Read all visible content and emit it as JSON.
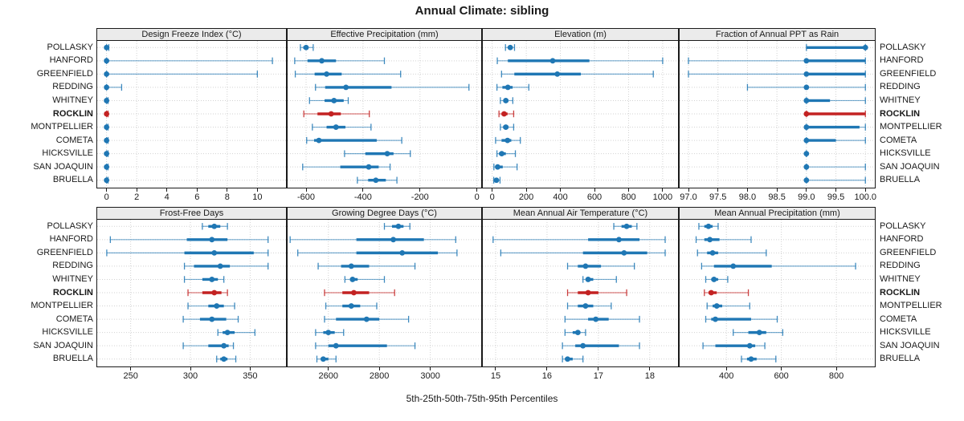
{
  "title": "Annual Climate: sibling",
  "footer": "5th-25th-50th-75th-95th Percentiles",
  "sites": [
    "POLLASKY",
    "HANFORD",
    "GREENFIELD",
    "REDDING",
    "WHITNEY",
    "ROCKLIN",
    "MONTPELLIER",
    "COMETA",
    "HICKSVILLE",
    "SAN JOAQUIN",
    "BRUELLA"
  ],
  "highlight_site": "ROCKLIN",
  "percentiles": [
    "5th",
    "25th",
    "50th",
    "75th",
    "95th"
  ],
  "colors": {
    "series": "#1f77b4",
    "highlight": "#c32222",
    "header_bg": "#ebebeb",
    "panel_border": "#1a1a1a",
    "grid": "#d2d2d2",
    "text": "#1a1a1a"
  },
  "chart_data": [
    {
      "type": "dotplot",
      "title": "Design Freeze Index (°C)",
      "xlim": [
        -0.62,
        11.9
      ],
      "ticks": [
        0,
        2,
        4,
        6,
        8,
        10
      ],
      "tick_labels": [
        "0",
        "2",
        "4",
        "6",
        "8",
        "10"
      ],
      "values": [
        [
          0,
          0,
          0,
          0,
          0.15
        ],
        [
          0,
          0,
          0,
          0,
          11
        ],
        [
          0,
          0,
          0,
          0,
          10
        ],
        [
          0,
          0,
          0,
          0,
          1
        ],
        [
          0,
          0,
          0,
          0,
          0.1
        ],
        [
          0,
          0,
          0,
          0,
          0.1
        ],
        [
          0,
          0,
          0,
          0,
          0.1
        ],
        [
          0,
          0,
          0,
          0,
          0.1
        ],
        [
          0,
          0,
          0,
          0,
          0.1
        ],
        [
          0,
          0,
          0,
          0,
          0.1
        ],
        [
          0,
          0,
          0,
          0,
          0.1
        ]
      ]
    },
    {
      "type": "dotplot",
      "title": "Effective Precipitation (mm)",
      "xlim": [
        -665,
        15
      ],
      "ticks": [
        -600,
        -400,
        -200,
        0
      ],
      "tick_labels": [
        "-600",
        "-400",
        "-200",
        "0"
      ],
      "values": [
        [
          -620,
          -610,
          -600,
          -592,
          -575
        ],
        [
          -640,
          -595,
          -545,
          -495,
          -325
        ],
        [
          -638,
          -570,
          -528,
          -475,
          -268
        ],
        [
          -567,
          -533,
          -460,
          -300,
          -28
        ],
        [
          -588,
          -535,
          -502,
          -468,
          -452
        ],
        [
          -608,
          -560,
          -512,
          -478,
          -378
        ],
        [
          -578,
          -528,
          -495,
          -462,
          -372
        ],
        [
          -598,
          -572,
          -555,
          -352,
          -264
        ],
        [
          -465,
          -392,
          -315,
          -293,
          -234
        ],
        [
          -612,
          -480,
          -380,
          -345,
          -305
        ],
        [
          -420,
          -382,
          -355,
          -320,
          -281
        ]
      ]
    },
    {
      "type": "dotplot",
      "title": "Elevation (m)",
      "xlim": [
        -55,
        1090
      ],
      "ticks": [
        0,
        200,
        400,
        600,
        800,
        1000
      ],
      "tick_labels": [
        "0",
        "200",
        "400",
        "600",
        "800",
        "1000"
      ],
      "values": [
        [
          78,
          95,
          106,
          116,
          131
        ],
        [
          30,
          92,
          355,
          570,
          1000
        ],
        [
          55,
          130,
          382,
          520,
          945
        ],
        [
          28,
          60,
          92,
          120,
          215
        ],
        [
          48,
          65,
          80,
          95,
          121
        ],
        [
          40,
          55,
          70,
          90,
          126
        ],
        [
          48,
          64,
          80,
          96,
          126
        ],
        [
          20,
          55,
          90,
          112,
          165
        ],
        [
          28,
          40,
          56,
          80,
          136
        ],
        [
          10,
          20,
          32,
          62,
          146
        ],
        [
          9,
          17,
          25,
          34,
          46
        ]
      ]
    },
    {
      "type": "dotplot",
      "title": "Fraction of Annual PPT as Rain",
      "xlim": [
        96.85,
        100.16
      ],
      "ticks": [
        97.0,
        97.5,
        98.0,
        98.5,
        99.0,
        99.5,
        100.0
      ],
      "tick_labels": [
        "97.0",
        "97.5",
        "98.0",
        "98.5",
        "99.0",
        "99.5",
        "100.0"
      ],
      "values": [
        [
          99,
          99,
          100,
          100,
          100
        ],
        [
          97,
          99,
          99,
          100,
          100
        ],
        [
          97,
          99,
          99,
          100,
          100
        ],
        [
          98,
          99,
          99,
          99,
          100
        ],
        [
          99,
          99,
          99,
          99.4,
          100
        ],
        [
          99,
          99,
          99,
          100,
          100
        ],
        [
          99,
          99,
          99,
          99.9,
          100
        ],
        [
          99,
          99,
          99,
          99.5,
          100
        ],
        [
          99,
          99,
          99,
          99,
          99
        ],
        [
          99,
          99,
          99,
          99,
          100
        ],
        [
          99,
          99,
          99,
          99,
          100
        ]
      ]
    },
    {
      "type": "dotplot",
      "title": "Frost-Free Days",
      "xlim": [
        222,
        380
      ],
      "ticks": [
        250,
        300,
        350
      ],
      "tick_labels": [
        "250",
        "300",
        "350"
      ],
      "values": [
        [
          310,
          315,
          320,
          325,
          331
        ],
        [
          233,
          297,
          318,
          331,
          365
        ],
        [
          230,
          295,
          320,
          353,
          365
        ],
        [
          295,
          303,
          325,
          333,
          365
        ],
        [
          295,
          310,
          318,
          323,
          328
        ],
        [
          298,
          310,
          320,
          326,
          331
        ],
        [
          298,
          315,
          322,
          328,
          337
        ],
        [
          294,
          308,
          318,
          330,
          340
        ],
        [
          323,
          327,
          331,
          337,
          354
        ],
        [
          294,
          315,
          328,
          332,
          336
        ],
        [
          322,
          325,
          328,
          331,
          338
        ]
      ]
    },
    {
      "type": "dotplot",
      "title": "Growing Degree Days (°C)",
      "xlim": [
        2440,
        3200
      ],
      "ticks": [
        2600,
        2800,
        3000
      ],
      "tick_labels": [
        "2600",
        "2800",
        "3000"
      ],
      "values": [
        [
          2820,
          2850,
          2875,
          2895,
          2920
        ],
        [
          2450,
          2710,
          2855,
          2975,
          3100
        ],
        [
          2480,
          2710,
          2890,
          3030,
          3105
        ],
        [
          2560,
          2650,
          2690,
          2760,
          2940
        ],
        [
          2665,
          2685,
          2695,
          2715,
          2820
        ],
        [
          2585,
          2655,
          2700,
          2760,
          2860
        ],
        [
          2590,
          2655,
          2690,
          2725,
          2790
        ],
        [
          2585,
          2630,
          2750,
          2800,
          2915
        ],
        [
          2550,
          2580,
          2600,
          2625,
          2660
        ],
        [
          2550,
          2600,
          2630,
          2830,
          2940
        ],
        [
          2555,
          2570,
          2580,
          2600,
          2630
        ]
      ]
    },
    {
      "type": "dotplot",
      "title": "Mean Annual Air Temperature (°C)",
      "xlim": [
        14.75,
        18.55
      ],
      "ticks": [
        15,
        16,
        17,
        18
      ],
      "tick_labels": [
        "15",
        "16",
        "17",
        "18"
      ],
      "values": [
        [
          17.3,
          17.45,
          17.55,
          17.65,
          17.75
        ],
        [
          14.95,
          16.8,
          17.4,
          17.8,
          18.3
        ],
        [
          15.1,
          16.7,
          17.5,
          17.95,
          18.3
        ],
        [
          16.4,
          16.6,
          16.75,
          17.05,
          17.7
        ],
        [
          16.7,
          16.75,
          16.8,
          16.9,
          17.35
        ],
        [
          16.4,
          16.6,
          16.8,
          17.0,
          17.55
        ],
        [
          16.4,
          16.6,
          16.75,
          16.9,
          17.25
        ],
        [
          16.35,
          16.8,
          16.95,
          17.2,
          17.8
        ],
        [
          16.35,
          16.5,
          16.6,
          16.65,
          16.75
        ],
        [
          16.3,
          16.55,
          16.7,
          17.4,
          17.8
        ],
        [
          16.3,
          16.35,
          16.4,
          16.5,
          16.7
        ]
      ]
    },
    {
      "type": "dotplot",
      "title": "Mean Annual Precipitation (mm)",
      "xlim": [
        230,
        940
      ],
      "ticks": [
        400,
        600,
        800
      ],
      "tick_labels": [
        "400",
        "600",
        "800"
      ],
      "values": [
        [
          300,
          320,
          335,
          350,
          370
        ],
        [
          290,
          320,
          340,
          375,
          490
        ],
        [
          295,
          330,
          350,
          370,
          545
        ],
        [
          310,
          355,
          425,
          565,
          870
        ],
        [
          325,
          345,
          355,
          370,
          405
        ],
        [
          320,
          335,
          345,
          365,
          480
        ],
        [
          330,
          350,
          365,
          385,
          485
        ],
        [
          325,
          345,
          360,
          490,
          585
        ],
        [
          425,
          480,
          520,
          545,
          605
        ],
        [
          315,
          360,
          485,
          505,
          540
        ],
        [
          455,
          475,
          490,
          510,
          580
        ]
      ]
    }
  ]
}
